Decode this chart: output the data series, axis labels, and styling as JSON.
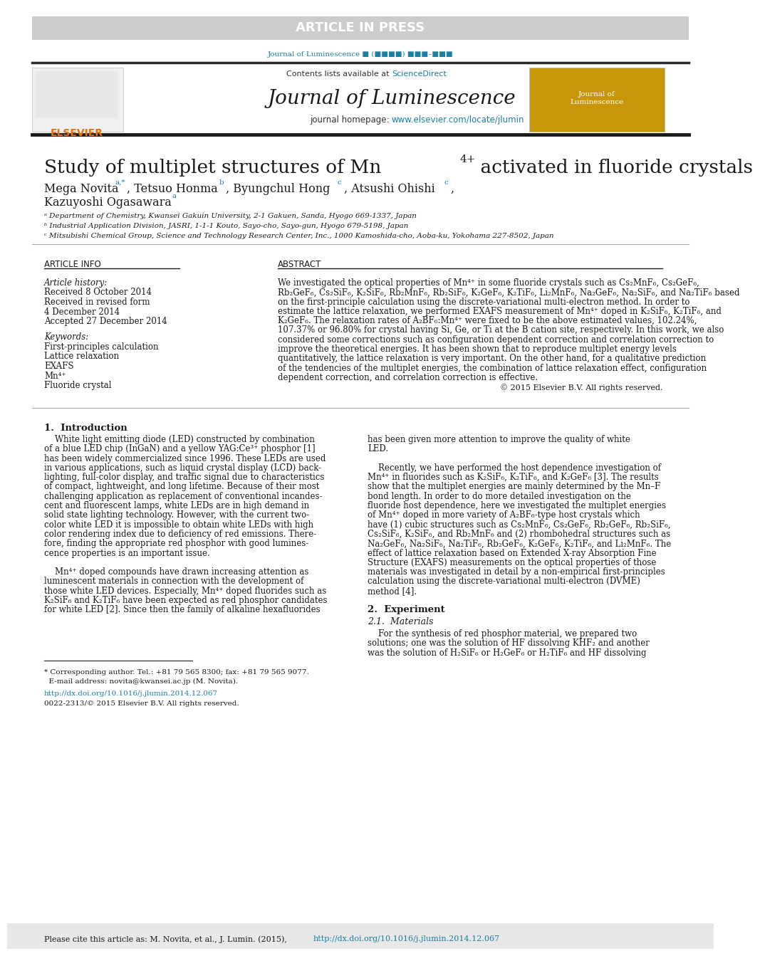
{
  "page_bg": "#ffffff",
  "header_bar_color": "#cccccc",
  "header_text": "ARTICLE IN PRESS",
  "header_text_color": "#ffffff",
  "journal_ref_color": "#1a7fa0",
  "journal_ref": "Journal of Luminescence ■ (■■■■) ■■■–■■■",
  "divider_color": "#1a1a1a",
  "elsevier_color": "#e8720c",
  "journal_title": "Journal of Luminescence",
  "journal_url": "www.elsevier.com/locate/jlumin",
  "journal_url_color": "#1a7fa0",
  "contents_text": "Contents lists available at ScienceDirect",
  "sciencedirect_color": "#1a7fa0",
  "article_info_header": "ARTICLE INFO",
  "abstract_header": "ABSTRACT",
  "article_history": "Article history:\nReceived 8 October 2014\nReceived in revised form\n4 December 2014\nAccepted 27 December 2014",
  "keywords_header": "Keywords:",
  "keywords": "First-principles calculation\nLattice relaxation\nEXAFS\nMn⁴⁺\nFluoride crystal",
  "abstract_copyright": "© 2015 Elsevier B.V. All rights reserved.",
  "intro_header": "1.  Introduction",
  "experiment_header": "2.  Experiment",
  "experiment_subheader": "2.1.  Materials",
  "footnote_line1": "* Corresponding author. Tel.: +81 79 565 8300; fax: +81 79 565 9077.",
  "footnote_line2": "  E-mail address: novita@kwansei.ac.jp (M. Novita).",
  "doi_text": "http://dx.doi.org/10.1016/j.jlumin.2014.12.067",
  "copyright_text": "0022-2313/© 2015 Elsevier B.V. All rights reserved.",
  "cite_text": "Please cite this article as: M. Novita, et al., J. Lumin. (2015), http://dx.doi.org/10.1016/j.jlumin.2014.12.067",
  "cite_bar_color": "#e8e8e8",
  "doi_color": "#1a7fa0",
  "accent_color": "#1a7fa0",
  "affiliation_a": "ᵃ Department of Chemistry, Kwansei Gakuin University, 2-1 Gakuen, Sanda, Hyogo 669-1337, Japan",
  "affiliation_b": "ᵇ Industrial Application Division, JASRI, 1-1-1 Kouto, Sayo-cho, Sayo-gun, Hyogo 679-5198, Japan",
  "affiliation_c": "ᶜ Mitsubishi Chemical Group, Science and Technology Research Center, Inc., 1000 Kamoshida-cho, Aoba-ku, Yokohama 227-8502, Japan",
  "abstract_lines": [
    "We investigated the optical properties of Mn⁴⁺ in some fluoride crystals such as Cs₂MnF₆, Cs₂GeF₆,",
    "Rb₂GeF₆, Cs₂SiF₆, K₂SiF₆, Rb₂MnF₆, Rb₂SiF₆, K₂GeF₆, K₂TiF₆, Li₂MnF₆, Na₂GeF₆, Na₂SiF₆, and Na₂TiF₆ based",
    "on the first-principle calculation using the discrete-variational multi-electron method. In order to",
    "estimate the lattice relaxation, we performed EXAFS measurement of Mn⁴⁺ doped in K₂SiF₆, K₂TiF₆, and",
    "K₂GeF₆. The relaxation rates of A₂BF₆:Mn⁴⁺ were fixed to be the above estimated values, 102.24%,",
    "107.37% or 96.80% for crystal having Si, Ge, or Ti at the B cation site, respectively. In this work, we also",
    "considered some corrections such as configuration dependent correction and correlation correction to",
    "improve the theoretical energies. It has been shown that to reproduce multiplet energy levels",
    "quantitatively, the lattice relaxation is very important. On the other hand, for a qualitative prediction",
    "of the tendencies of the multiplet energies, the combination of lattice relaxation effect, configuration",
    "dependent correction, and correlation correction is effective."
  ],
  "left_intro_lines": [
    "    White light emitting diode (LED) constructed by combination",
    "of a blue LED chip (InGaN) and a yellow YAG:Ce³⁺ phosphor [1]",
    "has been widely commercialized since 1996. These LEDs are used",
    "in various applications, such as liquid crystal display (LCD) back-",
    "lighting, full-color display, and traffic signal due to characteristics",
    "of compact, lightweight, and long lifetime. Because of their most",
    "challenging application as replacement of conventional incandes-",
    "cent and fluorescent lamps, white LEDs are in high demand in",
    "solid state lighting technology. However, with the current two-",
    "color white LED it is impossible to obtain white LEDs with high",
    "color rendering index due to deficiency of red emissions. There-",
    "fore, finding the appropriate red phosphor with good lumines-",
    "cence properties is an important issue.",
    "",
    "    Mn⁴⁺ doped compounds have drawn increasing attention as",
    "luminescent materials in connection with the development of",
    "those white LED devices. Especially, Mn⁴⁺ doped fluorides such as",
    "K₂SiF₆ and K₂TiF₆ have been expected as red phosphor candidates",
    "for white LED [2]. Since then the family of alkaline hexafluorides"
  ],
  "right_intro_lines": [
    "has been given more attention to improve the quality of white",
    "LED.",
    "",
    "    Recently, we have performed the host dependence investigation of",
    "Mn⁴⁺ in fluorides such as K₂SiF₆, K₂TiF₆, and K₂GeF₆ [3]. The results",
    "show that the multiplet energies are mainly determined by the Mn–F",
    "bond length. In order to do more detailed investigation on the",
    "fluoride host dependence, here we investigated the multiplet energies",
    "of Mn⁴⁺ doped in more variety of A₂BF₆-type host crystals which",
    "have (1) cubic structures such as Cs₂MnF₆, Cs₂GeF₆, Rb₂GeF₆, Rb₂SiF₆,",
    "Cs₂SiF₆, K₂SiF₆, and Rb₂MnF₆ and (2) rhombohedral structures such as",
    "Na₂GeF₆, Na₂SiF₆, Na₂TiF₆, Rb₂GeF₆, K₂GeF₆, K₂TiF₆, and Li₂MnF₆. The",
    "effect of lattice relaxation based on Extended X-ray Absorption Fine",
    "Structure (EXAFS) measurements on the optical properties of those",
    "materials was investigated in detail by a non-empirical first-principles",
    "calculation using the discrete-variational multi-electron (DVME)",
    "method [4]."
  ],
  "exp_lines": [
    "    For the synthesis of red phosphor material, we prepared two",
    "solutions; one was the solution of HF dissolving KHF₂ and another",
    "was the solution of H₂SiF₆ or H₂GeF₆ or H₂TiF₆ and HF dissolving"
  ]
}
